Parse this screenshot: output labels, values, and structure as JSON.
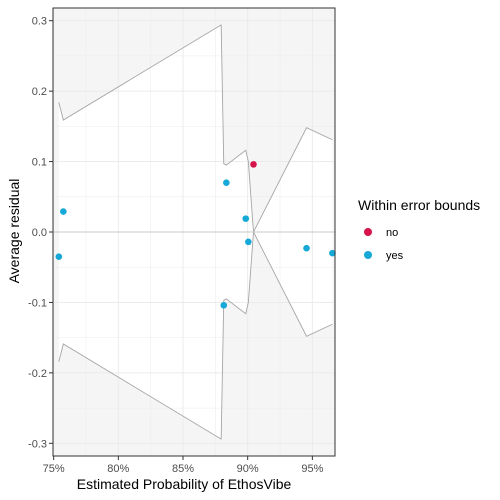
{
  "chart_data": {
    "type": "scatter",
    "xlabel": "Estimated Probability of EthosVibe",
    "ylabel": "Average residual",
    "x_ticks": [
      0.75,
      0.8,
      0.85,
      0.9,
      0.95
    ],
    "x_tick_labels": [
      "75%",
      "80%",
      "85%",
      "90%",
      "95%"
    ],
    "y_ticks": [
      -0.3,
      -0.2,
      -0.1,
      0.0,
      0.1,
      0.2,
      0.3
    ],
    "y_tick_labels": [
      "-0.3",
      "-0.2",
      "-0.1",
      "0.0",
      "0.1",
      "0.2",
      "0.3"
    ],
    "xlim": [
      0.7495,
      0.9675
    ],
    "ylim": [
      -0.318,
      0.318
    ],
    "grid": true,
    "legend": {
      "title": "Within error bounds",
      "position": "right",
      "entries": [
        {
          "label": "no",
          "color": "#d6134a"
        },
        {
          "label": "yes",
          "color": "#16a8d6"
        }
      ]
    },
    "points": [
      {
        "x": 0.754,
        "y": -0.035,
        "group": "yes"
      },
      {
        "x": 0.7575,
        "y": 0.029,
        "group": "yes"
      },
      {
        "x": 0.8815,
        "y": -0.104,
        "group": "yes"
      },
      {
        "x": 0.8835,
        "y": 0.07,
        "group": "yes"
      },
      {
        "x": 0.8985,
        "y": 0.019,
        "group": "yes"
      },
      {
        "x": 0.9005,
        "y": -0.014,
        "group": "yes"
      },
      {
        "x": 0.9045,
        "y": 0.096,
        "group": "no"
      },
      {
        "x": 0.9455,
        "y": -0.023,
        "group": "yes"
      },
      {
        "x": 0.9655,
        "y": -0.03,
        "group": "yes"
      }
    ],
    "error_bound": [
      {
        "x": 0.754,
        "y": 0.184
      },
      {
        "x": 0.7575,
        "y": 0.159
      },
      {
        "x": 0.8795,
        "y": 0.294
      },
      {
        "x": 0.8815,
        "y": 0.097
      },
      {
        "x": 0.8835,
        "y": 0.095
      },
      {
        "x": 0.8985,
        "y": 0.116
      },
      {
        "x": 0.9005,
        "y": 0.1
      },
      {
        "x": 0.9045,
        "y": 0.0
      },
      {
        "x": 0.9455,
        "y": 0.148
      },
      {
        "x": 0.9655,
        "y": 0.131
      }
    ],
    "colors": {
      "no": "#d6134a",
      "yes": "#16a8d6",
      "bound_line": "#a6a6a6",
      "outside_fill": "#f5f5f5",
      "grid": "#ebebeb",
      "zero_line": "#c8c8c8",
      "panel_border": "#333333"
    }
  }
}
